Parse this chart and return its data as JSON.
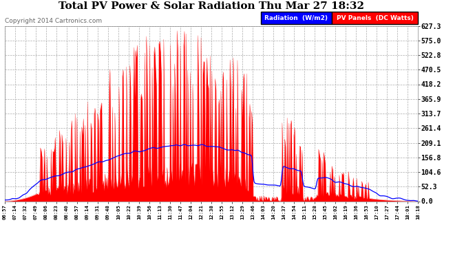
{
  "title": "Total PV Power & Solar Radiation Thu Mar 27 18:32",
  "copyright": "Copyright 2014 Cartronics.com",
  "yticks": [
    0.0,
    52.3,
    104.6,
    156.8,
    209.1,
    261.4,
    313.7,
    365.9,
    418.2,
    470.5,
    522.8,
    575.0,
    627.3
  ],
  "ymax": 627.3,
  "ymin": 0.0,
  "legend_radiation": "Radiation  (W/m2)",
  "legend_pv": "PV Panels  (DC Watts)",
  "radiation_color": "#0000ff",
  "pv_color": "#ff0000",
  "pv_fill_color": "#ff0000",
  "background_color": "#ffffff",
  "grid_color": "#aaaaaa",
  "title_fontsize": 11,
  "copyright_fontsize": 6.5,
  "legend_bg_radiation": "#0000ff",
  "legend_bg_pv": "#ff0000",
  "x_tick_labels": [
    "06:57",
    "07:14",
    "07:32",
    "07:49",
    "08:06",
    "08:23",
    "08:40",
    "08:57",
    "09:14",
    "09:31",
    "09:48",
    "10:05",
    "10:22",
    "10:39",
    "10:56",
    "11:13",
    "11:30",
    "11:47",
    "12:04",
    "12:21",
    "12:38",
    "12:55",
    "13:12",
    "13:29",
    "13:46",
    "14:03",
    "14:20",
    "14:37",
    "14:54",
    "15:11",
    "15:28",
    "15:45",
    "16:02",
    "16:19",
    "16:36",
    "16:53",
    "17:10",
    "17:27",
    "17:44",
    "18:01",
    "18:18"
  ]
}
